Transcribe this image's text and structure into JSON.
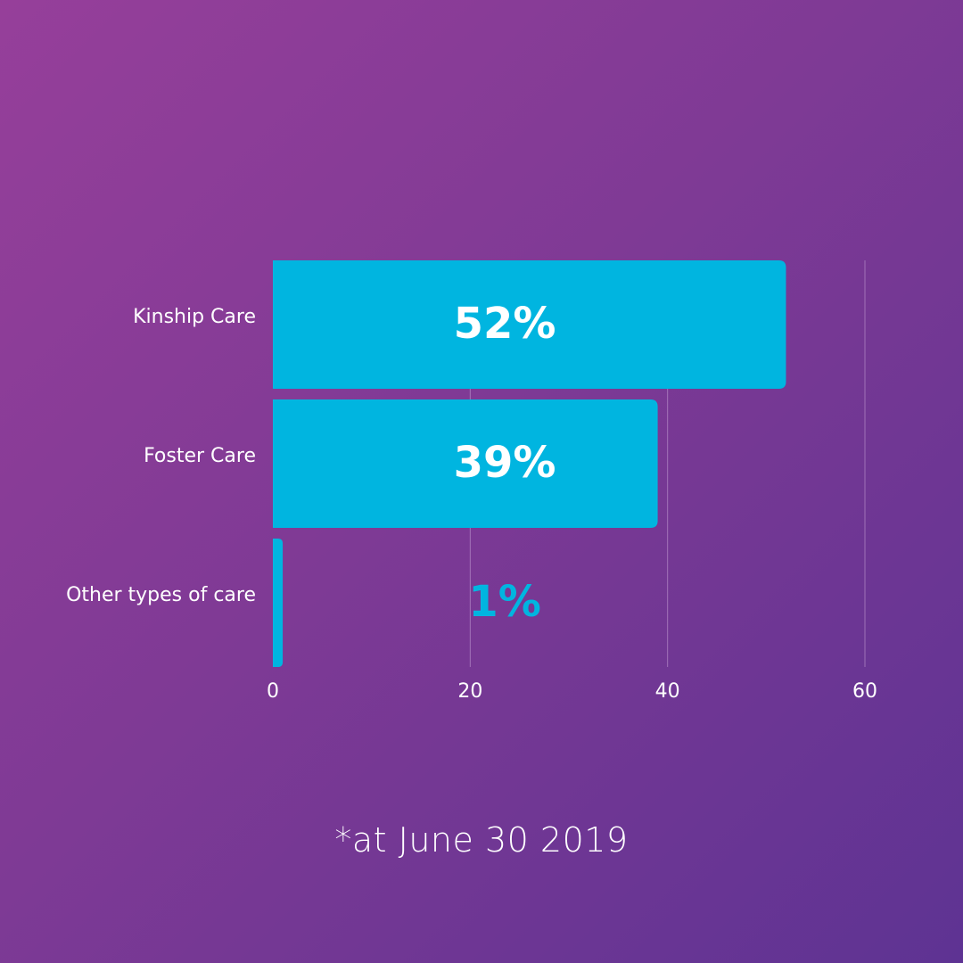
{
  "chart_data": {
    "type": "bar",
    "orientation": "horizontal",
    "categories": [
      "Kinship Care",
      "Foster Care",
      "Other types of care"
    ],
    "values": [
      52,
      39,
      1
    ],
    "value_labels": [
      "52%",
      "39%",
      "1%"
    ],
    "x_ticks": [
      "0",
      "20",
      "40",
      "60"
    ],
    "xlim": [
      0,
      60
    ],
    "grid": true,
    "bar_color": "#00b5e0",
    "label_color_inside": "#ffffff",
    "label_color_outside": "#00b5e0"
  },
  "footnote": "*at June 30 2019",
  "colors": {
    "gradient_start": "#963f9a",
    "gradient_end": "#5e3393",
    "gridline": "#b58cc8"
  }
}
